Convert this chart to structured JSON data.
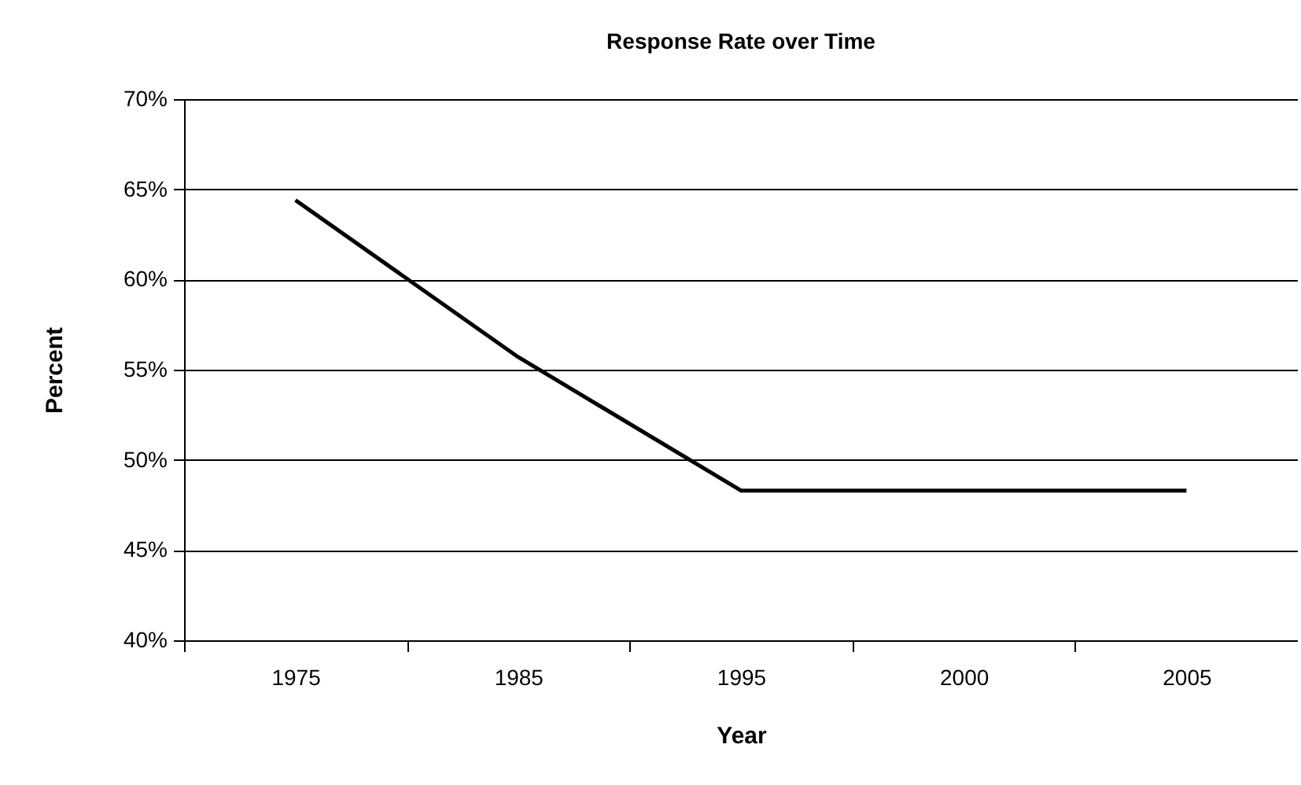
{
  "chart_data": {
    "type": "line",
    "title": "Response Rate over Time",
    "xlabel": "Year",
    "ylabel": "Percent",
    "categories": [
      "1975",
      "1985",
      "1995",
      "2000",
      "2005"
    ],
    "series": [
      {
        "color": "#000000",
        "values": [
          64.4,
          55.7,
          48.3,
          48.3,
          48.3
        ]
      }
    ],
    "ylim": [
      40,
      70
    ],
    "yticks": [
      {
        "value": 40,
        "label": "40%"
      },
      {
        "value": 45,
        "label": "45%"
      },
      {
        "value": 50,
        "label": "50%"
      },
      {
        "value": 55,
        "label": "55%"
      },
      {
        "value": 60,
        "label": "60%"
      },
      {
        "value": 65,
        "label": "65%"
      },
      {
        "value": 70,
        "label": "70%"
      }
    ],
    "grid": "y",
    "marker": "none",
    "line_style": "solid"
  }
}
